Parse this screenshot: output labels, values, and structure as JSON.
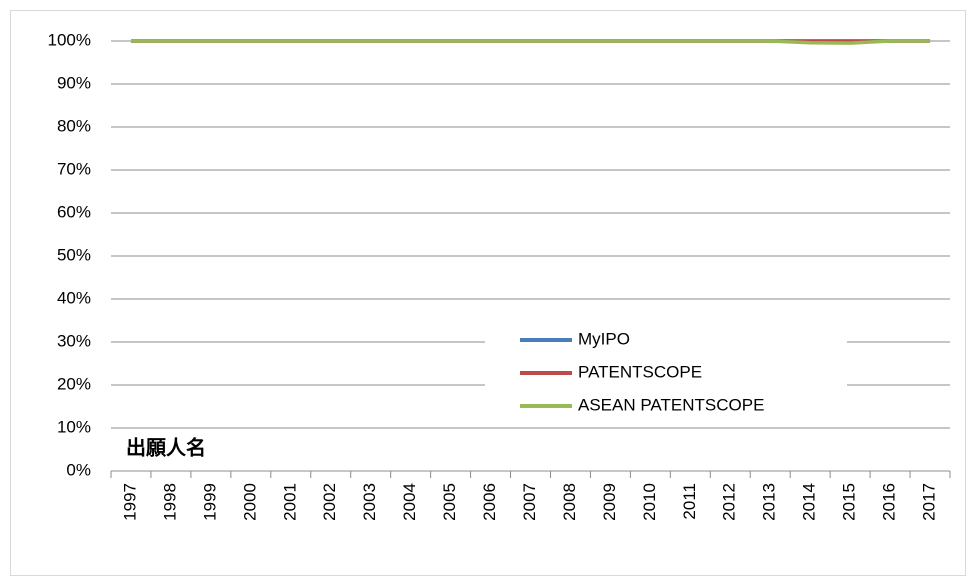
{
  "chart_data": {
    "type": "line",
    "categories": [
      "1997",
      "1998",
      "1999",
      "2000",
      "2001",
      "2002",
      "2003",
      "2004",
      "2005",
      "2006",
      "2007",
      "2008",
      "2009",
      "2010",
      "2011",
      "2012",
      "2013",
      "2014",
      "2015",
      "2016",
      "2017"
    ],
    "series": [
      {
        "name": "MyIPO",
        "color": "#4a7ebb",
        "values": [
          100,
          100,
          100,
          100,
          100,
          100,
          100,
          100,
          100,
          100,
          100,
          100,
          100,
          100,
          100,
          100,
          100,
          100,
          100,
          100,
          100
        ]
      },
      {
        "name": "PATENTSCOPE",
        "color": "#be4b48",
        "values": [
          100,
          100,
          100,
          100,
          100,
          100,
          100,
          100,
          100,
          100,
          100,
          100,
          100,
          100,
          100,
          100,
          100,
          100,
          100,
          100,
          100
        ]
      },
      {
        "name": "ASEAN PATENTSCOPE",
        "color": "#98b954",
        "values": [
          100,
          100,
          100,
          100,
          100,
          100,
          100,
          100,
          100,
          100,
          100,
          100,
          100,
          100,
          100,
          100,
          100,
          99.6,
          99.5,
          100,
          100
        ]
      }
    ],
    "ylim": [
      0,
      100
    ],
    "yticks": [
      {
        "value": 0,
        "label": "0%"
      },
      {
        "value": 10,
        "label": "10%"
      },
      {
        "value": 20,
        "label": "20%"
      },
      {
        "value": 30,
        "label": "30%"
      },
      {
        "value": 40,
        "label": "40%"
      },
      {
        "value": 50,
        "label": "50%"
      },
      {
        "value": 60,
        "label": "60%"
      },
      {
        "value": 70,
        "label": "70%"
      },
      {
        "value": 80,
        "label": "80%"
      },
      {
        "value": 90,
        "label": "90%"
      },
      {
        "value": 100,
        "label": "100%"
      }
    ],
    "grid": true,
    "annotation": "出願人名",
    "legend": "center"
  }
}
